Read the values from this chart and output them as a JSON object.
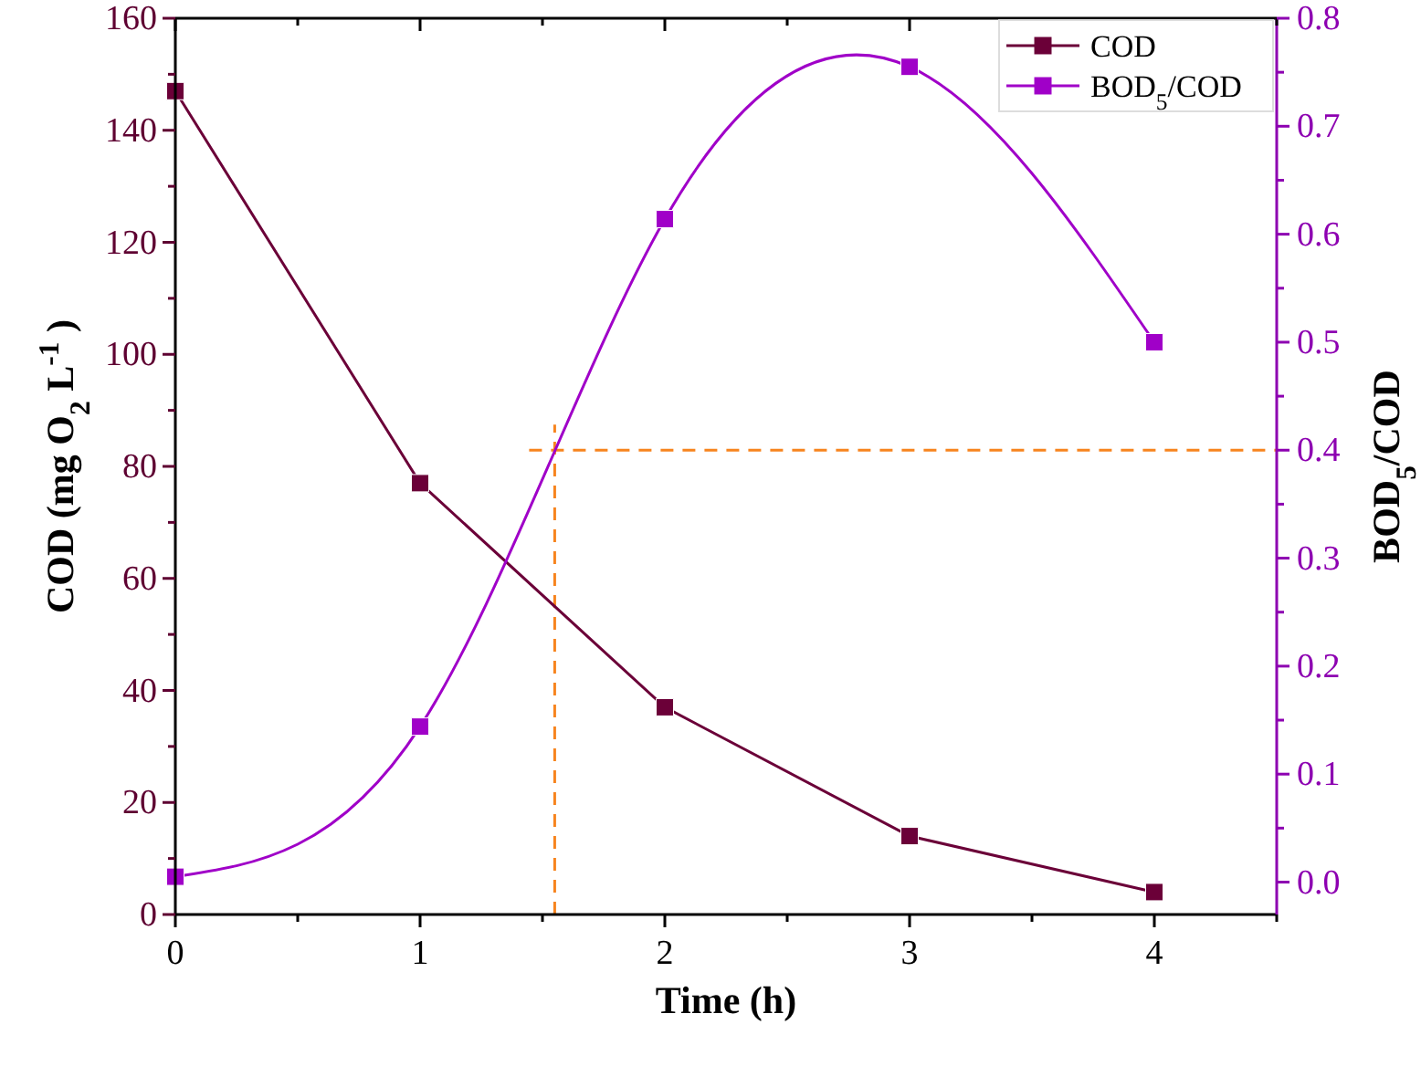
{
  "chart_data": {
    "type": "line",
    "xlabel": "Time (h)",
    "ylabel": "COD (mg O$_{2}$ L$^{-1}$ )",
    "y2label": "BOD$_{5}$/COD",
    "x": [
      0,
      1,
      2,
      3,
      4
    ],
    "xlim": [
      0,
      4.5
    ],
    "xticks": [
      0,
      {
        "value": 0.5,
        "label": null
      },
      1,
      {
        "value": 1.5,
        "label": null
      },
      2,
      {
        "value": 2.5,
        "label": null
      },
      3,
      {
        "value": 3.5,
        "label": null
      },
      4,
      {
        "value": 4.5,
        "label": null
      }
    ],
    "ylim": [
      0,
      160
    ],
    "yticks": [
      0,
      {
        "value": 10,
        "label": null
      },
      20,
      {
        "value": 30,
        "label": null
      },
      40,
      {
        "value": 50,
        "label": null
      },
      60,
      {
        "value": 70,
        "label": null
      },
      80,
      {
        "value": 90,
        "label": null
      },
      100,
      {
        "value": 110,
        "label": null
      },
      120,
      {
        "value": 130,
        "label": null
      },
      140,
      {
        "value": 150,
        "label": null
      },
      160
    ],
    "y2lim": [
      -0.03,
      0.8
    ],
    "y2ticks": [
      {
        "value": 0,
        "label": "0.0"
      },
      {
        "value": 0.05,
        "label": null
      },
      0.1,
      {
        "value": 0.15,
        "label": null
      },
      0.2,
      {
        "value": 0.25,
        "label": null
      },
      0.3,
      {
        "value": 0.35,
        "label": null
      },
      0.4,
      {
        "value": 0.45,
        "label": null
      },
      0.5,
      {
        "value": 0.55,
        "label": null
      },
      0.6,
      {
        "value": 0.65,
        "label": null
      },
      0.7,
      {
        "value": 0.75,
        "label": null
      },
      0.8
    ],
    "series": [
      {
        "name": "COD",
        "color": "#6b0038",
        "values": [
          147,
          77,
          37,
          14,
          4
        ]
      },
      {
        "name": "BOD$_{5}$/COD",
        "color": "#a000c8",
        "axis": "y2",
        "values": [
          0.005,
          0.144,
          0.614,
          0.755,
          0.5
        ]
      }
    ],
    "ref_lines": [
      {
        "axis": "y2",
        "value": 0.4,
        "color": "#f7841e",
        "line_style": "dashed"
      },
      {
        "axis": "x",
        "value": 1.55,
        "color": "#f7841e",
        "line_style": "dashed"
      }
    ],
    "marker": "square",
    "legend": "top right",
    "grid": false
  }
}
